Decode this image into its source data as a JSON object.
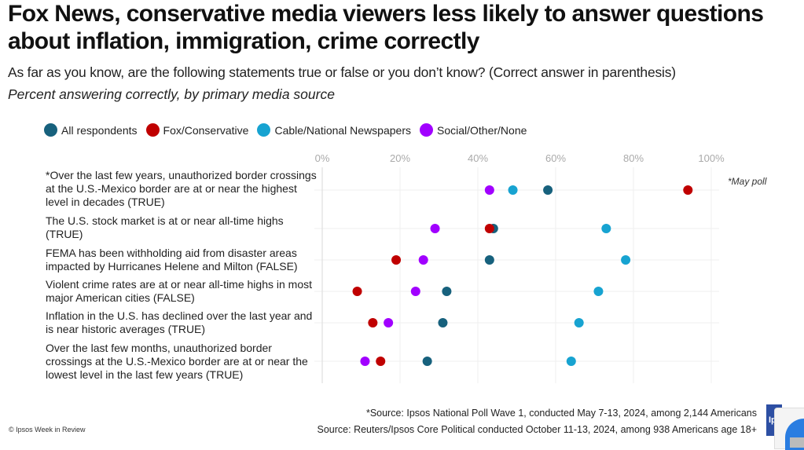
{
  "header": {
    "title": "Fox News, conservative media viewers less likely to answer questions about inflation, immigration, crime correctly",
    "subtitle": "As far as you know, are the following statements true or false or you don’t know? (Correct answer in parenthesis)",
    "subtitle2": "Percent answering correctly, by primary media source"
  },
  "note": "*May poll",
  "footer": {
    "source1": "*Source: Ipsos National Poll Wave 1, conducted  May 7-13, 2024, among 2,144 Americans",
    "source2": "Source: Reuters/Ipsos Core Political conducted October 11-13, 2024, among 938 Americans age 18+",
    "copyright": "© Ipsos Week in Review",
    "logo_text": "Ip"
  },
  "chart_data": {
    "type": "scatter",
    "subtype": "dot-plot",
    "title": "Fox News, conservative media viewers less likely to answer questions about inflation, immigration, crime correctly",
    "xlabel": "Percent answering correctly",
    "ylabel": "",
    "xlim": [
      0,
      100
    ],
    "x_ticks": [
      "0%",
      "20%",
      "40%",
      "60%",
      "80%",
      "100%"
    ],
    "x_tick_values": [
      0,
      20,
      40,
      60,
      80,
      100
    ],
    "grid": true,
    "legend_position": "top-left",
    "categories": [
      "*Over the last few years, unauthorized border crossings at the U.S.-Mexico border are at or near the highest level in decades (TRUE)",
      "The U.S. stock market is at or near all-time highs (TRUE)",
      "FEMA has been withholding aid from disaster areas impacted by Hurricanes Helene and Milton (FALSE)",
      "Violent crime rates are at or near all-time highs in most major American cities (FALSE)",
      "Inflation in the U.S. has declined over the last year and is near historic averages (TRUE)",
      "Over the last few months, unauthorized border crossings at the U.S.-Mexico border are at or near the lowest level in the last few years (TRUE)"
    ],
    "series": [
      {
        "name": "All respondents",
        "color": "#17617d",
        "values": [
          58,
          44,
          43,
          32,
          31,
          27
        ]
      },
      {
        "name": "Fox/Conservative",
        "color": "#c00000",
        "values": [
          94,
          43,
          19,
          9,
          13,
          15
        ]
      },
      {
        "name": "Cable/National Newspapers",
        "color": "#17a3d1",
        "values": [
          49,
          73,
          78,
          71,
          66,
          64
        ]
      },
      {
        "name": "Social/Other/None",
        "color": "#a100ff",
        "values": [
          43,
          29,
          26,
          24,
          17,
          11
        ]
      }
    ]
  }
}
